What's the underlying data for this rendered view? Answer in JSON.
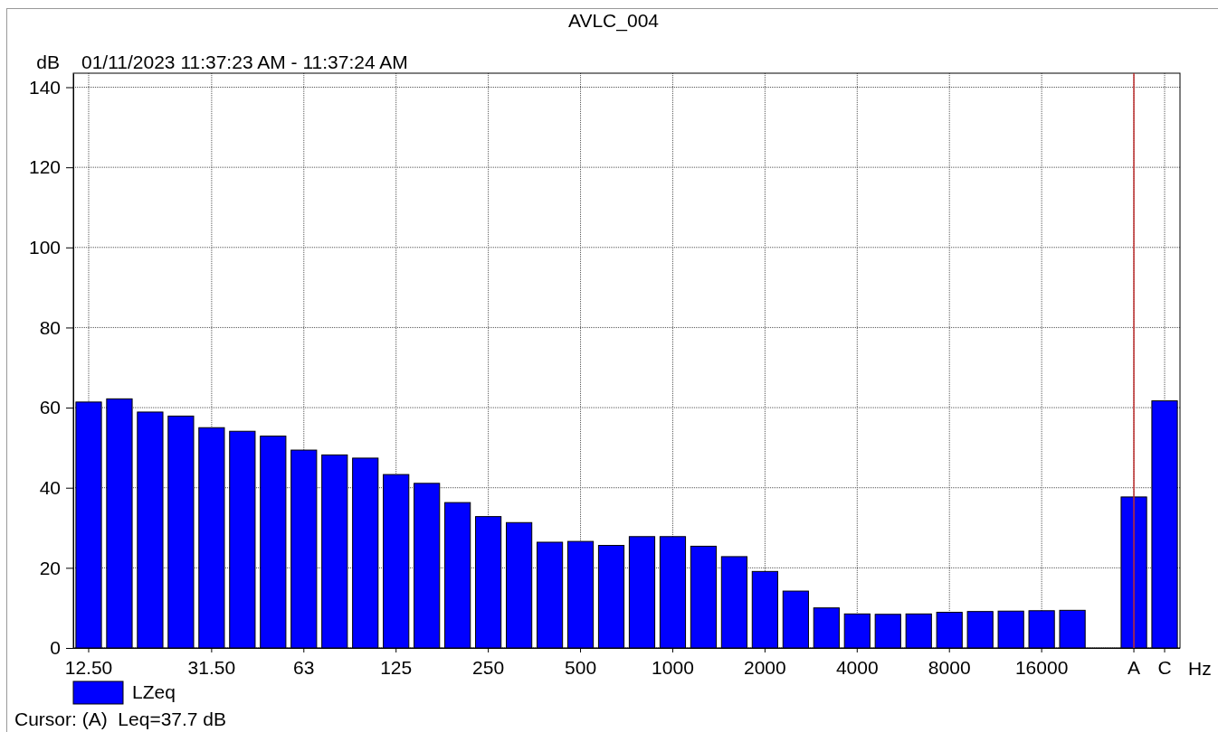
{
  "chart_data": {
    "type": "bar",
    "title": "AVLC_004",
    "subtitle": "01/11/2023 11:37:23 AM - 11:37:24 AM",
    "xlabel": "Hz",
    "ylabel": "dB",
    "categories": [
      "12.50",
      null,
      null,
      null,
      "31.50",
      null,
      null,
      "63",
      null,
      null,
      "125",
      null,
      null,
      "250",
      null,
      null,
      "500",
      null,
      null,
      "1000",
      null,
      null,
      "2000",
      null,
      null,
      "4000",
      null,
      null,
      "8000",
      null,
      null,
      "16000",
      null,
      null,
      "A",
      "C"
    ],
    "series": [
      {
        "name": "LZeq",
        "color": "#0000ff",
        "values": [
          61.4,
          62.2,
          58.9,
          57.9,
          55.0,
          54.1,
          52.9,
          49.4,
          48.2,
          47.4,
          43.3,
          41.1,
          36.3,
          32.8,
          31.3,
          26.4,
          26.6,
          25.6,
          27.8,
          27.8,
          25.4,
          22.8,
          19.1,
          14.2,
          10.0,
          8.5,
          8.4,
          8.5,
          8.9,
          9.1,
          9.2,
          9.3,
          9.4,
          null,
          37.7,
          61.7
        ]
      }
    ],
    "ylim": [
      0,
      143.5
    ],
    "yticks": [
      0,
      20,
      40,
      60,
      80,
      100,
      120,
      140
    ],
    "grid": true,
    "legend": "bottom left",
    "ref_lines": [
      {
        "axis": "x",
        "value": "A",
        "color": "#c03030"
      }
    ],
    "annotations": [
      "Cursor: (A)  Leq=37.7 dB"
    ]
  }
}
